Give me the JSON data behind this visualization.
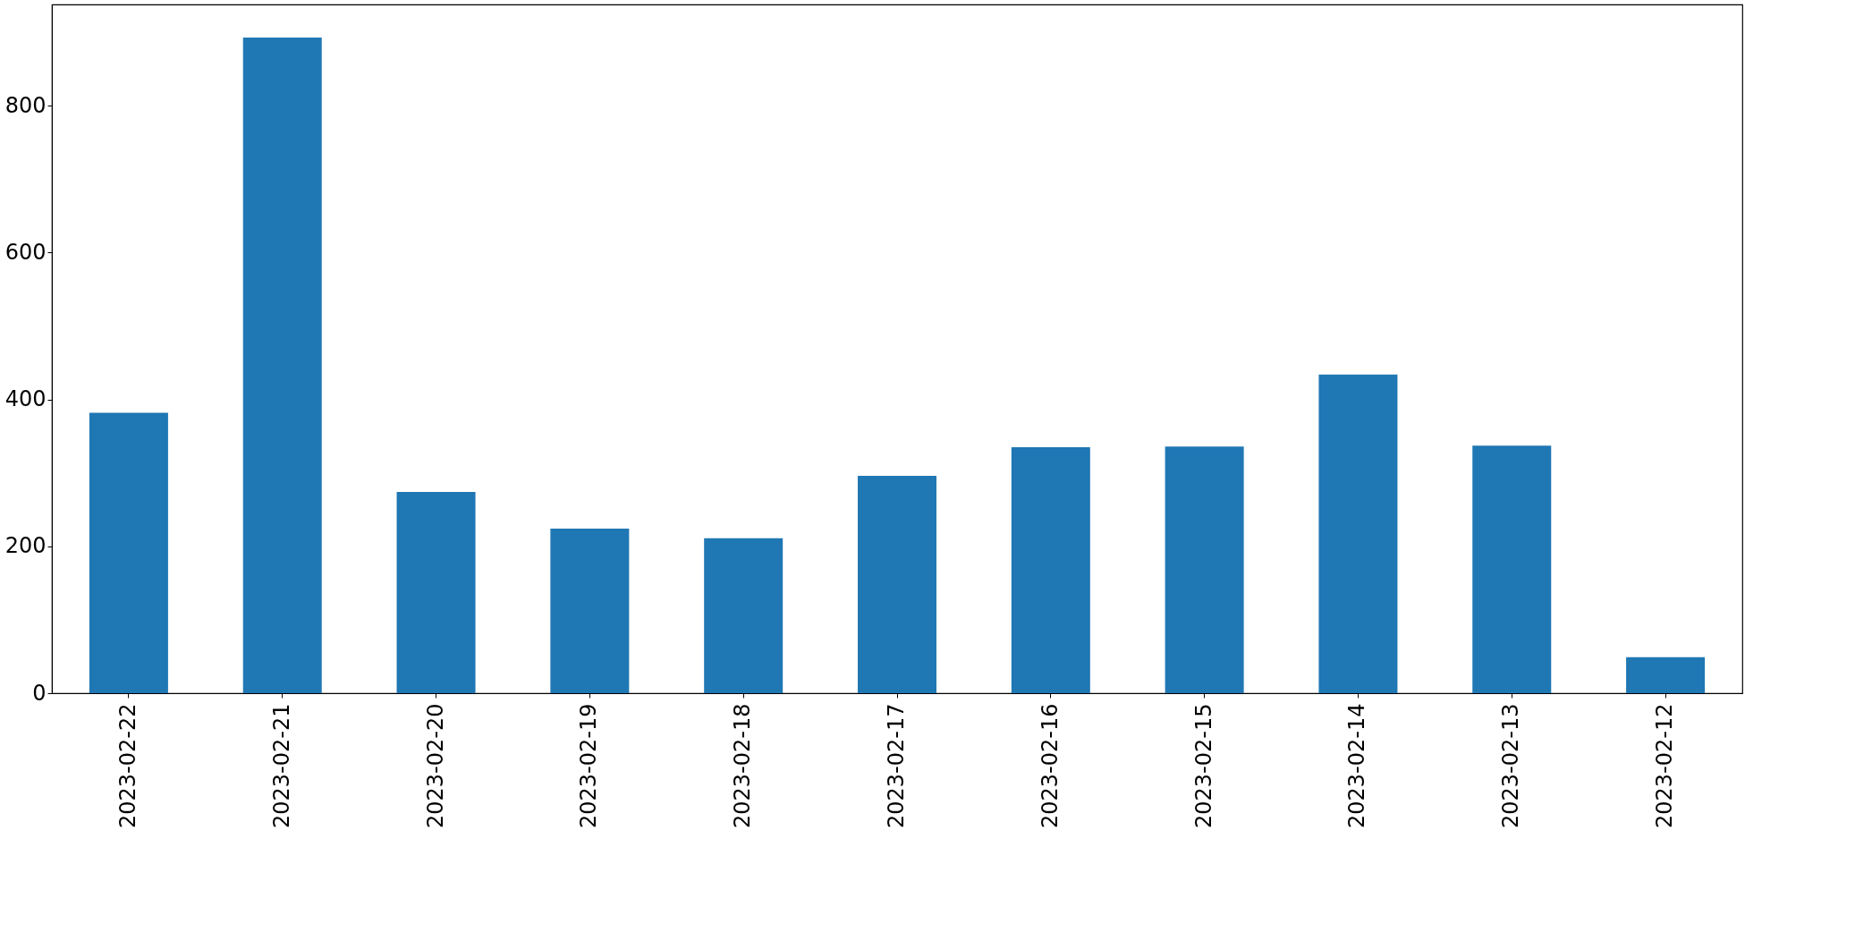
{
  "chart_data": {
    "type": "bar",
    "categories": [
      "2023-02-22",
      "2023-02-21",
      "2023-02-20",
      "2023-02-19",
      "2023-02-18",
      "2023-02-17",
      "2023-02-16",
      "2023-02-15",
      "2023-02-14",
      "2023-02-13",
      "2023-02-12"
    ],
    "values": [
      382,
      893,
      274,
      224,
      211,
      296,
      335,
      336,
      434,
      337,
      49
    ],
    "color": "#1f77b4",
    "ylim": [
      0,
      938
    ],
    "yticks": [
      0,
      200,
      400,
      600,
      800
    ],
    "grid": false
  }
}
